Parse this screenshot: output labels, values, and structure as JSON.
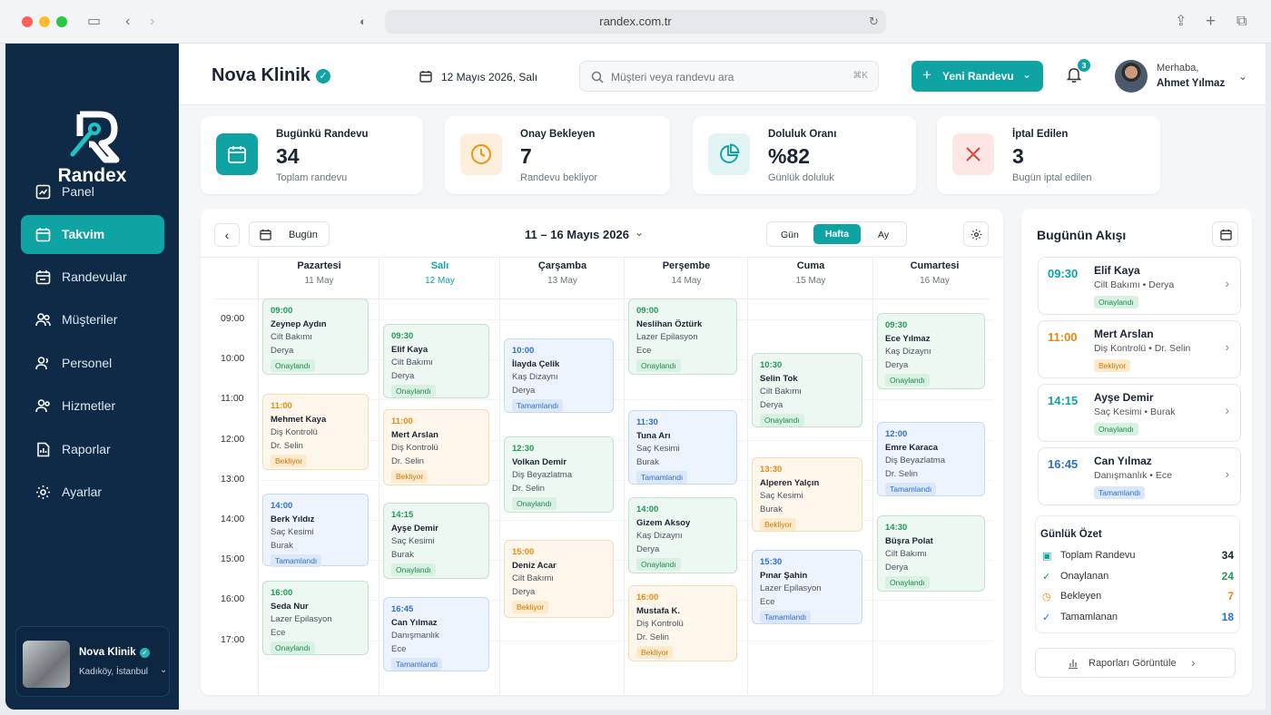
{
  "browser": {
    "url": "randex.com.tr"
  },
  "sidebar": {
    "brand": "Randex",
    "items": [
      "Panel",
      "Takvim",
      "Randevular",
      "Müşteriler",
      "Personel",
      "Hizmetler",
      "Raporlar",
      "Ayarlar"
    ],
    "clinic": {
      "name": "Nova Klinik",
      "location": "Kadıköy, İstanbul"
    }
  },
  "header": {
    "title": "Nova Klinik",
    "date": "12 Mayıs 2026, Salı",
    "search_placeholder": "Müşteri veya randevu ara",
    "shortcut": "⌘K",
    "new_button": "Yeni Randevu",
    "notification_count": "3",
    "greeting": "Merhaba,",
    "user": "Ahmet Yılmaz"
  },
  "stats": [
    {
      "label": "Bugünkü Randevu",
      "value": "34",
      "sub": "Toplam randevu"
    },
    {
      "label": "Onay Bekleyen",
      "value": "7",
      "sub": "Randevu bekliyor"
    },
    {
      "label": "Doluluk Oranı",
      "value": "%82",
      "sub": "Günlük doluluk"
    },
    {
      "label": "İptal Edilen",
      "value": "3",
      "sub": "Bugün iptal edilen"
    }
  ],
  "calendar": {
    "today_button": "Bugün",
    "range": "11 – 16 Mayıs 2026",
    "views": [
      "Gün",
      "Hafta",
      "Ay"
    ],
    "times": [
      "09:00",
      "10:00",
      "11:00",
      "12:00",
      "13:00",
      "14:00",
      "15:00",
      "16:00",
      "17:00"
    ],
    "days": [
      {
        "name": "Pazartesi",
        "date": "11 May"
      },
      {
        "name": "Salı",
        "date": "12 May"
      },
      {
        "name": "Çarşamba",
        "date": "13 May"
      },
      {
        "name": "Perşembe",
        "date": "14 May"
      },
      {
        "name": "Cuma",
        "date": "15 May"
      },
      {
        "name": "Cumartesi",
        "date": "16 May"
      }
    ],
    "events": [
      {
        "day": 0,
        "time": "09:00",
        "name": "Zeynep Aydın",
        "service": "Cilt Bakımı",
        "staff": "Derya",
        "status": "Onaylandı",
        "c": "g"
      },
      {
        "day": 0,
        "time": "11:00",
        "name": "Mehmet Kaya",
        "service": "Diş Kontrolü",
        "staff": "Dr. Selin",
        "status": "Bekliyor",
        "c": "o"
      },
      {
        "day": 0,
        "time": "14:00",
        "name": "Berk Yıldız",
        "service": "Saç Kesimi",
        "staff": "Burak",
        "status": "Tamamlandı",
        "c": "bl"
      },
      {
        "day": 0,
        "time": "16:00",
        "name": "Seda Nur",
        "service": "Lazer Epilasyon",
        "staff": "Ece",
        "status": "Onaylandı",
        "c": "g"
      },
      {
        "day": 1,
        "time": "09:30",
        "name": "Elif Kaya",
        "service": "Cilt Bakımı",
        "staff": "Derya",
        "status": "Onaylandı",
        "c": "g"
      },
      {
        "day": 1,
        "time": "11:00",
        "name": "Mert Arslan",
        "service": "Diş Kontrolü",
        "staff": "Dr. Selin",
        "status": "Bekliyor",
        "c": "o"
      },
      {
        "day": 1,
        "time": "14:15",
        "name": "Ayşe Demir",
        "service": "Saç Kesimi",
        "staff": "Burak",
        "status": "Onaylandı",
        "c": "g"
      },
      {
        "day": 1,
        "time": "16:45",
        "name": "Can Yılmaz",
        "service": "Danışmanlık",
        "staff": "Ece",
        "status": "Tamamlandı",
        "c": "bl"
      },
      {
        "day": 2,
        "time": "10:00",
        "name": "İlayda Çelik",
        "service": "Kaş Dizaynı",
        "staff": "Derya",
        "status": "Tamamlandı",
        "c": "bl"
      },
      {
        "day": 2,
        "time": "12:30",
        "name": "Volkan Demir",
        "service": "Diş Beyazlatma",
        "staff": "Dr. Selin",
        "status": "Onaylandı",
        "c": "g"
      },
      {
        "day": 2,
        "time": "15:00",
        "name": "Deniz Acar",
        "service": "Cilt Bakımı",
        "staff": "Derya",
        "status": "Bekliyor",
        "c": "o"
      },
      {
        "day": 3,
        "time": "09:00",
        "name": "Neslihan Öztürk",
        "service": "Lazer Epilasyon",
        "staff": "Ece",
        "status": "Onaylandı",
        "c": "g"
      },
      {
        "day": 3,
        "time": "11:30",
        "name": "Tuna Arı",
        "service": "Saç Kesimi",
        "staff": "Burak",
        "status": "Tamamlandı",
        "c": "bl"
      },
      {
        "day": 3,
        "time": "14:00",
        "name": "Gizem Aksoy",
        "service": "Kaş Dizaynı",
        "staff": "Derya",
        "status": "Onaylandı",
        "c": "g"
      },
      {
        "day": 3,
        "time": "16:00",
        "name": "Mustafa K.",
        "service": "Diş Kontrolü",
        "staff": "Dr. Selin",
        "status": "Bekliyor",
        "c": "o"
      },
      {
        "day": 4,
        "time": "10:30",
        "name": "Selin Tok",
        "service": "Cilt Bakımı",
        "staff": "Derya",
        "status": "Onaylandı",
        "c": "g"
      },
      {
        "day": 4,
        "time": "13:30",
        "name": "Alperen Yalçın",
        "service": "Saç Kesimi",
        "staff": "Burak",
        "status": "Bekliyor",
        "c": "o"
      },
      {
        "day": 4,
        "time": "15:30",
        "name": "Pınar Şahin",
        "service": "Lazer Epilasyon",
        "staff": "Ece",
        "status": "Tamamlandı",
        "c": "bl"
      },
      {
        "day": 5,
        "time": "09:30",
        "name": "Ece Yılmaz",
        "service": "Kaş Dizaynı",
        "staff": "Derya",
        "status": "Onaylandı",
        "c": "g"
      },
      {
        "day": 5,
        "time": "12:00",
        "name": "Emre Karaca",
        "service": "Diş Beyazlatma",
        "staff": "Dr. Selin",
        "status": "Tamamlandı",
        "c": "bl"
      },
      {
        "day": 5,
        "time": "14:30",
        "name": "Büşra Polat",
        "service": "Cilt Bakımı",
        "staff": "Derya",
        "status": "Onaylandı",
        "c": "g"
      }
    ]
  },
  "flow": {
    "title": "Bugünün Akışı",
    "items": [
      {
        "time": "09:30",
        "name": "Elif Kaya",
        "service": "Cilt Bakımı • Derya",
        "status": "Onaylandı",
        "c": "g"
      },
      {
        "time": "11:00",
        "name": "Mert Arslan",
        "service": "Diş Kontrolü • Dr. Selin",
        "status": "Bekliyor",
        "c": "o"
      },
      {
        "time": "14:15",
        "name": "Ayşe Demir",
        "service": "Saç Kesimi • Burak",
        "status": "Onaylandı",
        "c": "g"
      },
      {
        "time": "16:45",
        "name": "Can Yılmaz",
        "service": "Danışmanlık • Ece",
        "status": "Tamamlandı",
        "c": "bl"
      }
    ],
    "summary_title": "Günlük Özet",
    "summary": [
      {
        "label": "Toplam Randevu",
        "value": "34",
        "color": "#1c2433"
      },
      {
        "label": "Onaylanan",
        "value": "24",
        "color": "#1f9a55"
      },
      {
        "label": "Bekleyen",
        "value": "7",
        "color": "#e98a0c"
      },
      {
        "label": "Tamamlanan",
        "value": "18",
        "color": "#2f6fcc"
      }
    ],
    "reports_button": "Raporları Görüntüle"
  }
}
